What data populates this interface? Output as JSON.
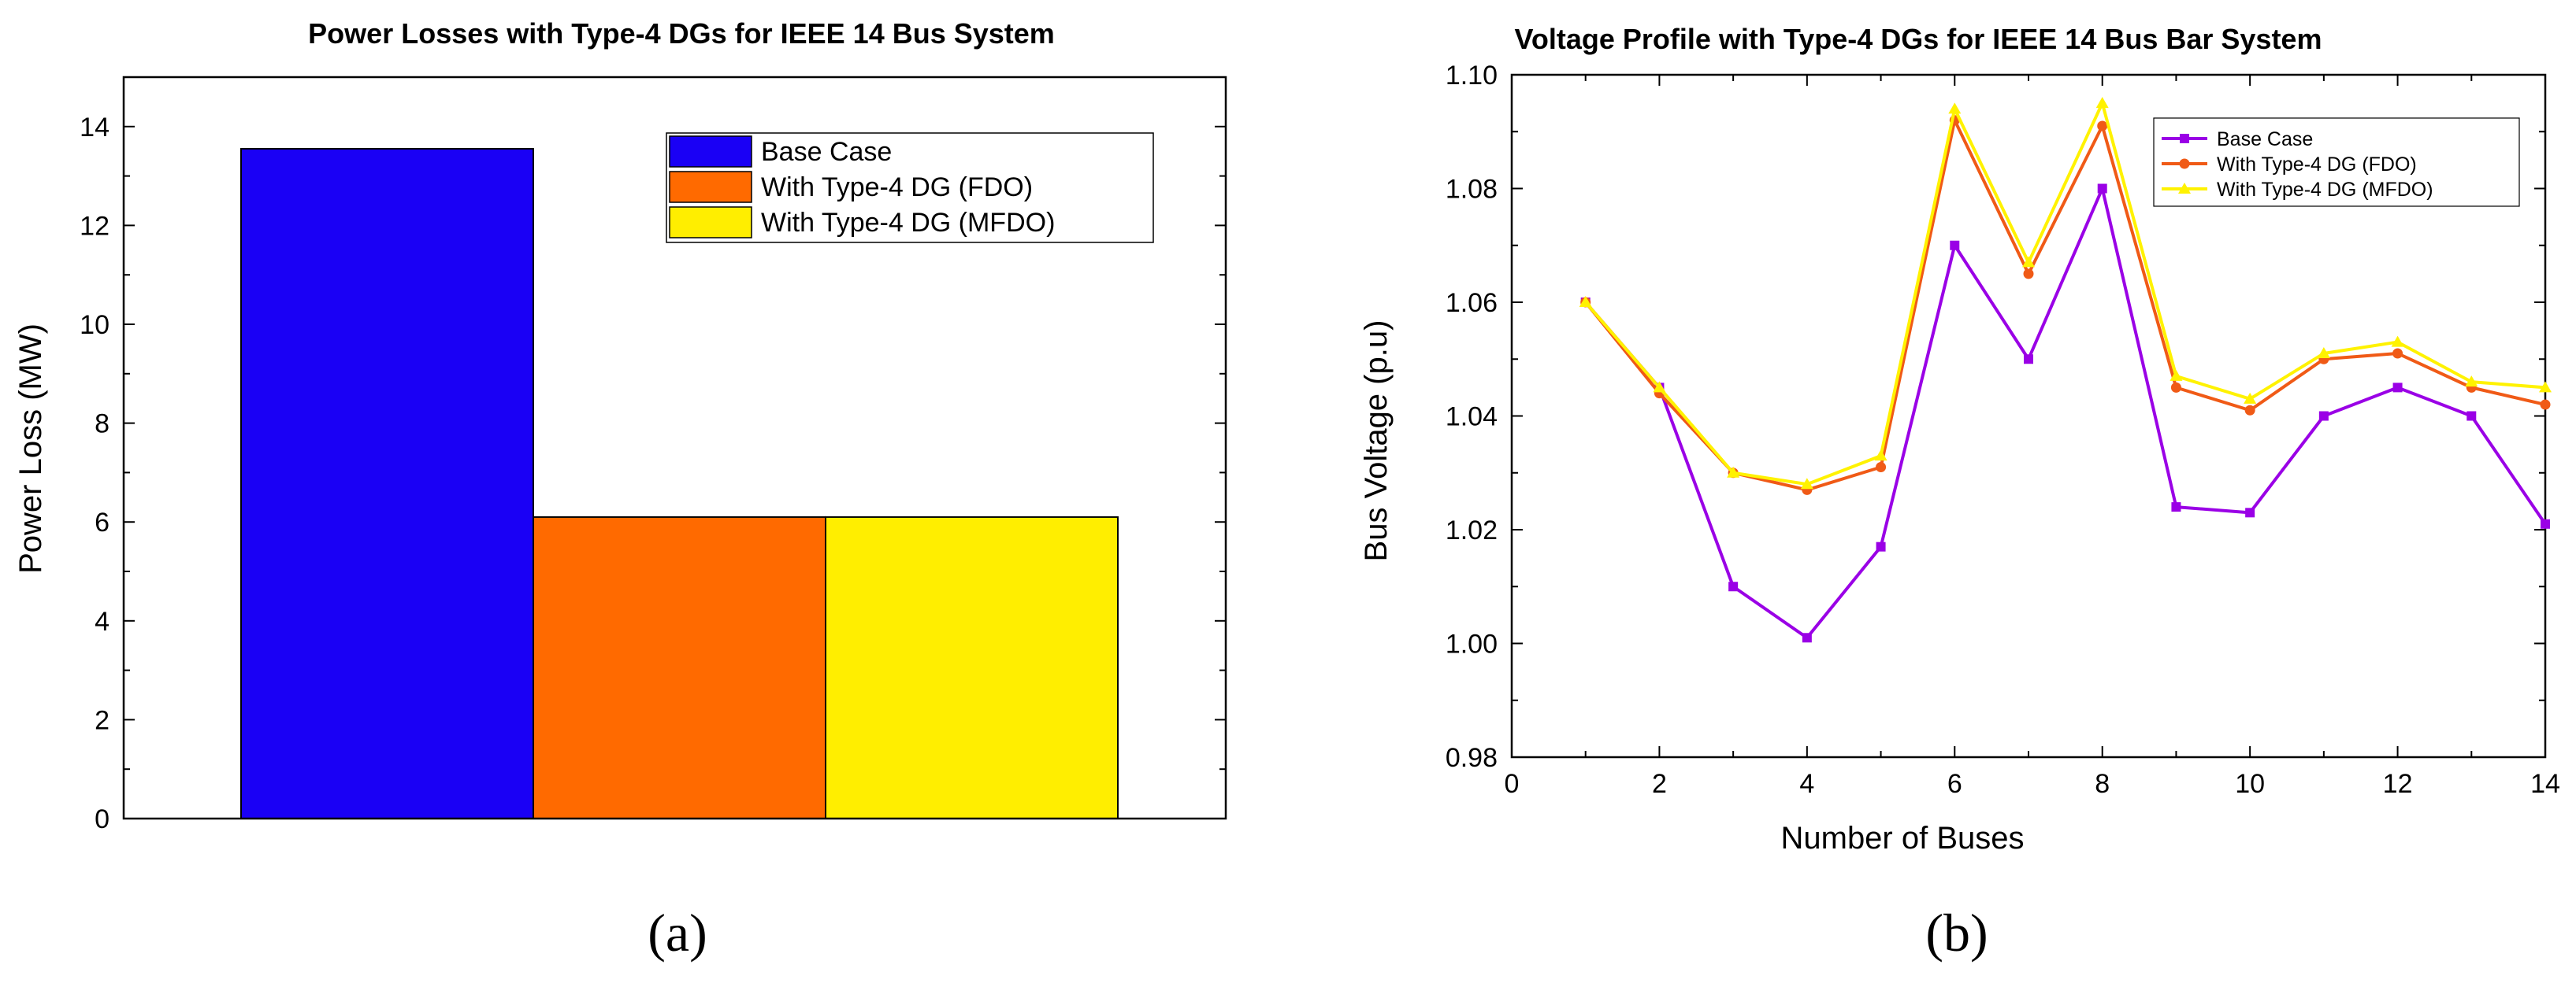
{
  "colors": {
    "base_bar": "#1a00f5",
    "fdo_bar": "#ff6a00",
    "mfdo_bar": "#ffee00",
    "base_line": "#9a00e6",
    "fdo_line": "#f05a16",
    "mfdo_line": "#fff200"
  },
  "captions": {
    "a": "(a)",
    "b": "(b)"
  },
  "chart_data": [
    {
      "type": "bar",
      "title": "Power Losses with Type-4 DGs for IEEE 14 Bus System",
      "xlabel": "",
      "ylabel": "Power Loss (MW)",
      "ylim": [
        0,
        15
      ],
      "yticks": [
        0,
        2,
        4,
        6,
        8,
        10,
        12,
        14
      ],
      "legend_position": "top-right",
      "series": [
        {
          "name": "Base Case",
          "value": 13.55
        },
        {
          "name": "With Type-4 DG (FDO)",
          "value": 6.1
        },
        {
          "name": "With Type-4 DG (MFDO)",
          "value": 6.1
        }
      ]
    },
    {
      "type": "line",
      "title": "Voltage Profile with Type-4 DGs for IEEE 14 Bus Bar System",
      "xlabel": "Number of Buses",
      "ylabel": "Bus Voltage (p.u)",
      "xlim": [
        0,
        14
      ],
      "ylim": [
        0.98,
        1.1
      ],
      "xticks": [
        0,
        2,
        4,
        6,
        8,
        10,
        12,
        14
      ],
      "yticks": [
        "0.98",
        "1.00",
        "1.02",
        "1.04",
        "1.06",
        "1.08",
        "1.10"
      ],
      "legend_position": "top-right",
      "x": [
        1,
        2,
        3,
        4,
        5,
        6,
        7,
        8,
        9,
        10,
        11,
        12,
        13,
        14
      ],
      "series": [
        {
          "name": "Base Case",
          "marker": "square",
          "values": [
            1.06,
            1.045,
            1.01,
            1.001,
            1.017,
            1.07,
            1.05,
            1.08,
            1.024,
            1.023,
            1.04,
            1.045,
            1.04,
            1.021
          ]
        },
        {
          "name": "With Type-4 DG (FDO)",
          "marker": "circle",
          "values": [
            1.06,
            1.044,
            1.03,
            1.027,
            1.031,
            1.092,
            1.065,
            1.091,
            1.045,
            1.041,
            1.05,
            1.051,
            1.045,
            1.042
          ]
        },
        {
          "name": "With Type-4 DG (MFDO)",
          "marker": "triangle",
          "values": [
            1.06,
            1.045,
            1.03,
            1.028,
            1.033,
            1.094,
            1.067,
            1.095,
            1.047,
            1.043,
            1.051,
            1.053,
            1.046,
            1.045
          ]
        }
      ]
    }
  ]
}
